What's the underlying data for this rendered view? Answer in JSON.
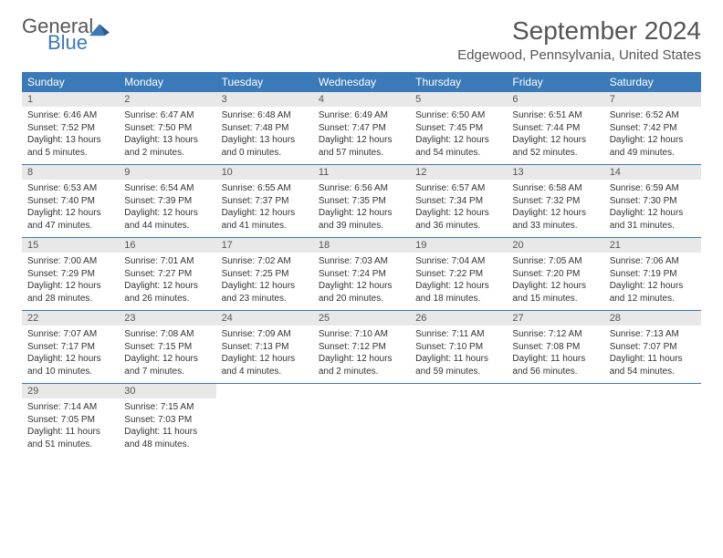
{
  "logo": {
    "general": "General",
    "blue": "Blue"
  },
  "title": "September 2024",
  "location": "Edgewood, Pennsylvania, United States",
  "colors": {
    "header_bg": "#3a7ab8",
    "header_fg": "#ffffff",
    "daynum_bg": "#e8e8e8",
    "text": "#333333",
    "rule": "#3a7ab8"
  },
  "weekdays": [
    "Sunday",
    "Monday",
    "Tuesday",
    "Wednesday",
    "Thursday",
    "Friday",
    "Saturday"
  ],
  "days": [
    {
      "n": 1,
      "sunrise": "6:46 AM",
      "sunset": "7:52 PM",
      "daylight": "13 hours and 5 minutes."
    },
    {
      "n": 2,
      "sunrise": "6:47 AM",
      "sunset": "7:50 PM",
      "daylight": "13 hours and 2 minutes."
    },
    {
      "n": 3,
      "sunrise": "6:48 AM",
      "sunset": "7:48 PM",
      "daylight": "13 hours and 0 minutes."
    },
    {
      "n": 4,
      "sunrise": "6:49 AM",
      "sunset": "7:47 PM",
      "daylight": "12 hours and 57 minutes."
    },
    {
      "n": 5,
      "sunrise": "6:50 AM",
      "sunset": "7:45 PM",
      "daylight": "12 hours and 54 minutes."
    },
    {
      "n": 6,
      "sunrise": "6:51 AM",
      "sunset": "7:44 PM",
      "daylight": "12 hours and 52 minutes."
    },
    {
      "n": 7,
      "sunrise": "6:52 AM",
      "sunset": "7:42 PM",
      "daylight": "12 hours and 49 minutes."
    },
    {
      "n": 8,
      "sunrise": "6:53 AM",
      "sunset": "7:40 PM",
      "daylight": "12 hours and 47 minutes."
    },
    {
      "n": 9,
      "sunrise": "6:54 AM",
      "sunset": "7:39 PM",
      "daylight": "12 hours and 44 minutes."
    },
    {
      "n": 10,
      "sunrise": "6:55 AM",
      "sunset": "7:37 PM",
      "daylight": "12 hours and 41 minutes."
    },
    {
      "n": 11,
      "sunrise": "6:56 AM",
      "sunset": "7:35 PM",
      "daylight": "12 hours and 39 minutes."
    },
    {
      "n": 12,
      "sunrise": "6:57 AM",
      "sunset": "7:34 PM",
      "daylight": "12 hours and 36 minutes."
    },
    {
      "n": 13,
      "sunrise": "6:58 AM",
      "sunset": "7:32 PM",
      "daylight": "12 hours and 33 minutes."
    },
    {
      "n": 14,
      "sunrise": "6:59 AM",
      "sunset": "7:30 PM",
      "daylight": "12 hours and 31 minutes."
    },
    {
      "n": 15,
      "sunrise": "7:00 AM",
      "sunset": "7:29 PM",
      "daylight": "12 hours and 28 minutes."
    },
    {
      "n": 16,
      "sunrise": "7:01 AM",
      "sunset": "7:27 PM",
      "daylight": "12 hours and 26 minutes."
    },
    {
      "n": 17,
      "sunrise": "7:02 AM",
      "sunset": "7:25 PM",
      "daylight": "12 hours and 23 minutes."
    },
    {
      "n": 18,
      "sunrise": "7:03 AM",
      "sunset": "7:24 PM",
      "daylight": "12 hours and 20 minutes."
    },
    {
      "n": 19,
      "sunrise": "7:04 AM",
      "sunset": "7:22 PM",
      "daylight": "12 hours and 18 minutes."
    },
    {
      "n": 20,
      "sunrise": "7:05 AM",
      "sunset": "7:20 PM",
      "daylight": "12 hours and 15 minutes."
    },
    {
      "n": 21,
      "sunrise": "7:06 AM",
      "sunset": "7:19 PM",
      "daylight": "12 hours and 12 minutes."
    },
    {
      "n": 22,
      "sunrise": "7:07 AM",
      "sunset": "7:17 PM",
      "daylight": "12 hours and 10 minutes."
    },
    {
      "n": 23,
      "sunrise": "7:08 AM",
      "sunset": "7:15 PM",
      "daylight": "12 hours and 7 minutes."
    },
    {
      "n": 24,
      "sunrise": "7:09 AM",
      "sunset": "7:13 PM",
      "daylight": "12 hours and 4 minutes."
    },
    {
      "n": 25,
      "sunrise": "7:10 AM",
      "sunset": "7:12 PM",
      "daylight": "12 hours and 2 minutes."
    },
    {
      "n": 26,
      "sunrise": "7:11 AM",
      "sunset": "7:10 PM",
      "daylight": "11 hours and 59 minutes."
    },
    {
      "n": 27,
      "sunrise": "7:12 AM",
      "sunset": "7:08 PM",
      "daylight": "11 hours and 56 minutes."
    },
    {
      "n": 28,
      "sunrise": "7:13 AM",
      "sunset": "7:07 PM",
      "daylight": "11 hours and 54 minutes."
    },
    {
      "n": 29,
      "sunrise": "7:14 AM",
      "sunset": "7:05 PM",
      "daylight": "11 hours and 51 minutes."
    },
    {
      "n": 30,
      "sunrise": "7:15 AM",
      "sunset": "7:03 PM",
      "daylight": "11 hours and 48 minutes."
    }
  ],
  "labels": {
    "sunrise": "Sunrise:",
    "sunset": "Sunset:",
    "daylight": "Daylight:"
  },
  "layout": {
    "start_weekday": 0,
    "columns": 7
  }
}
